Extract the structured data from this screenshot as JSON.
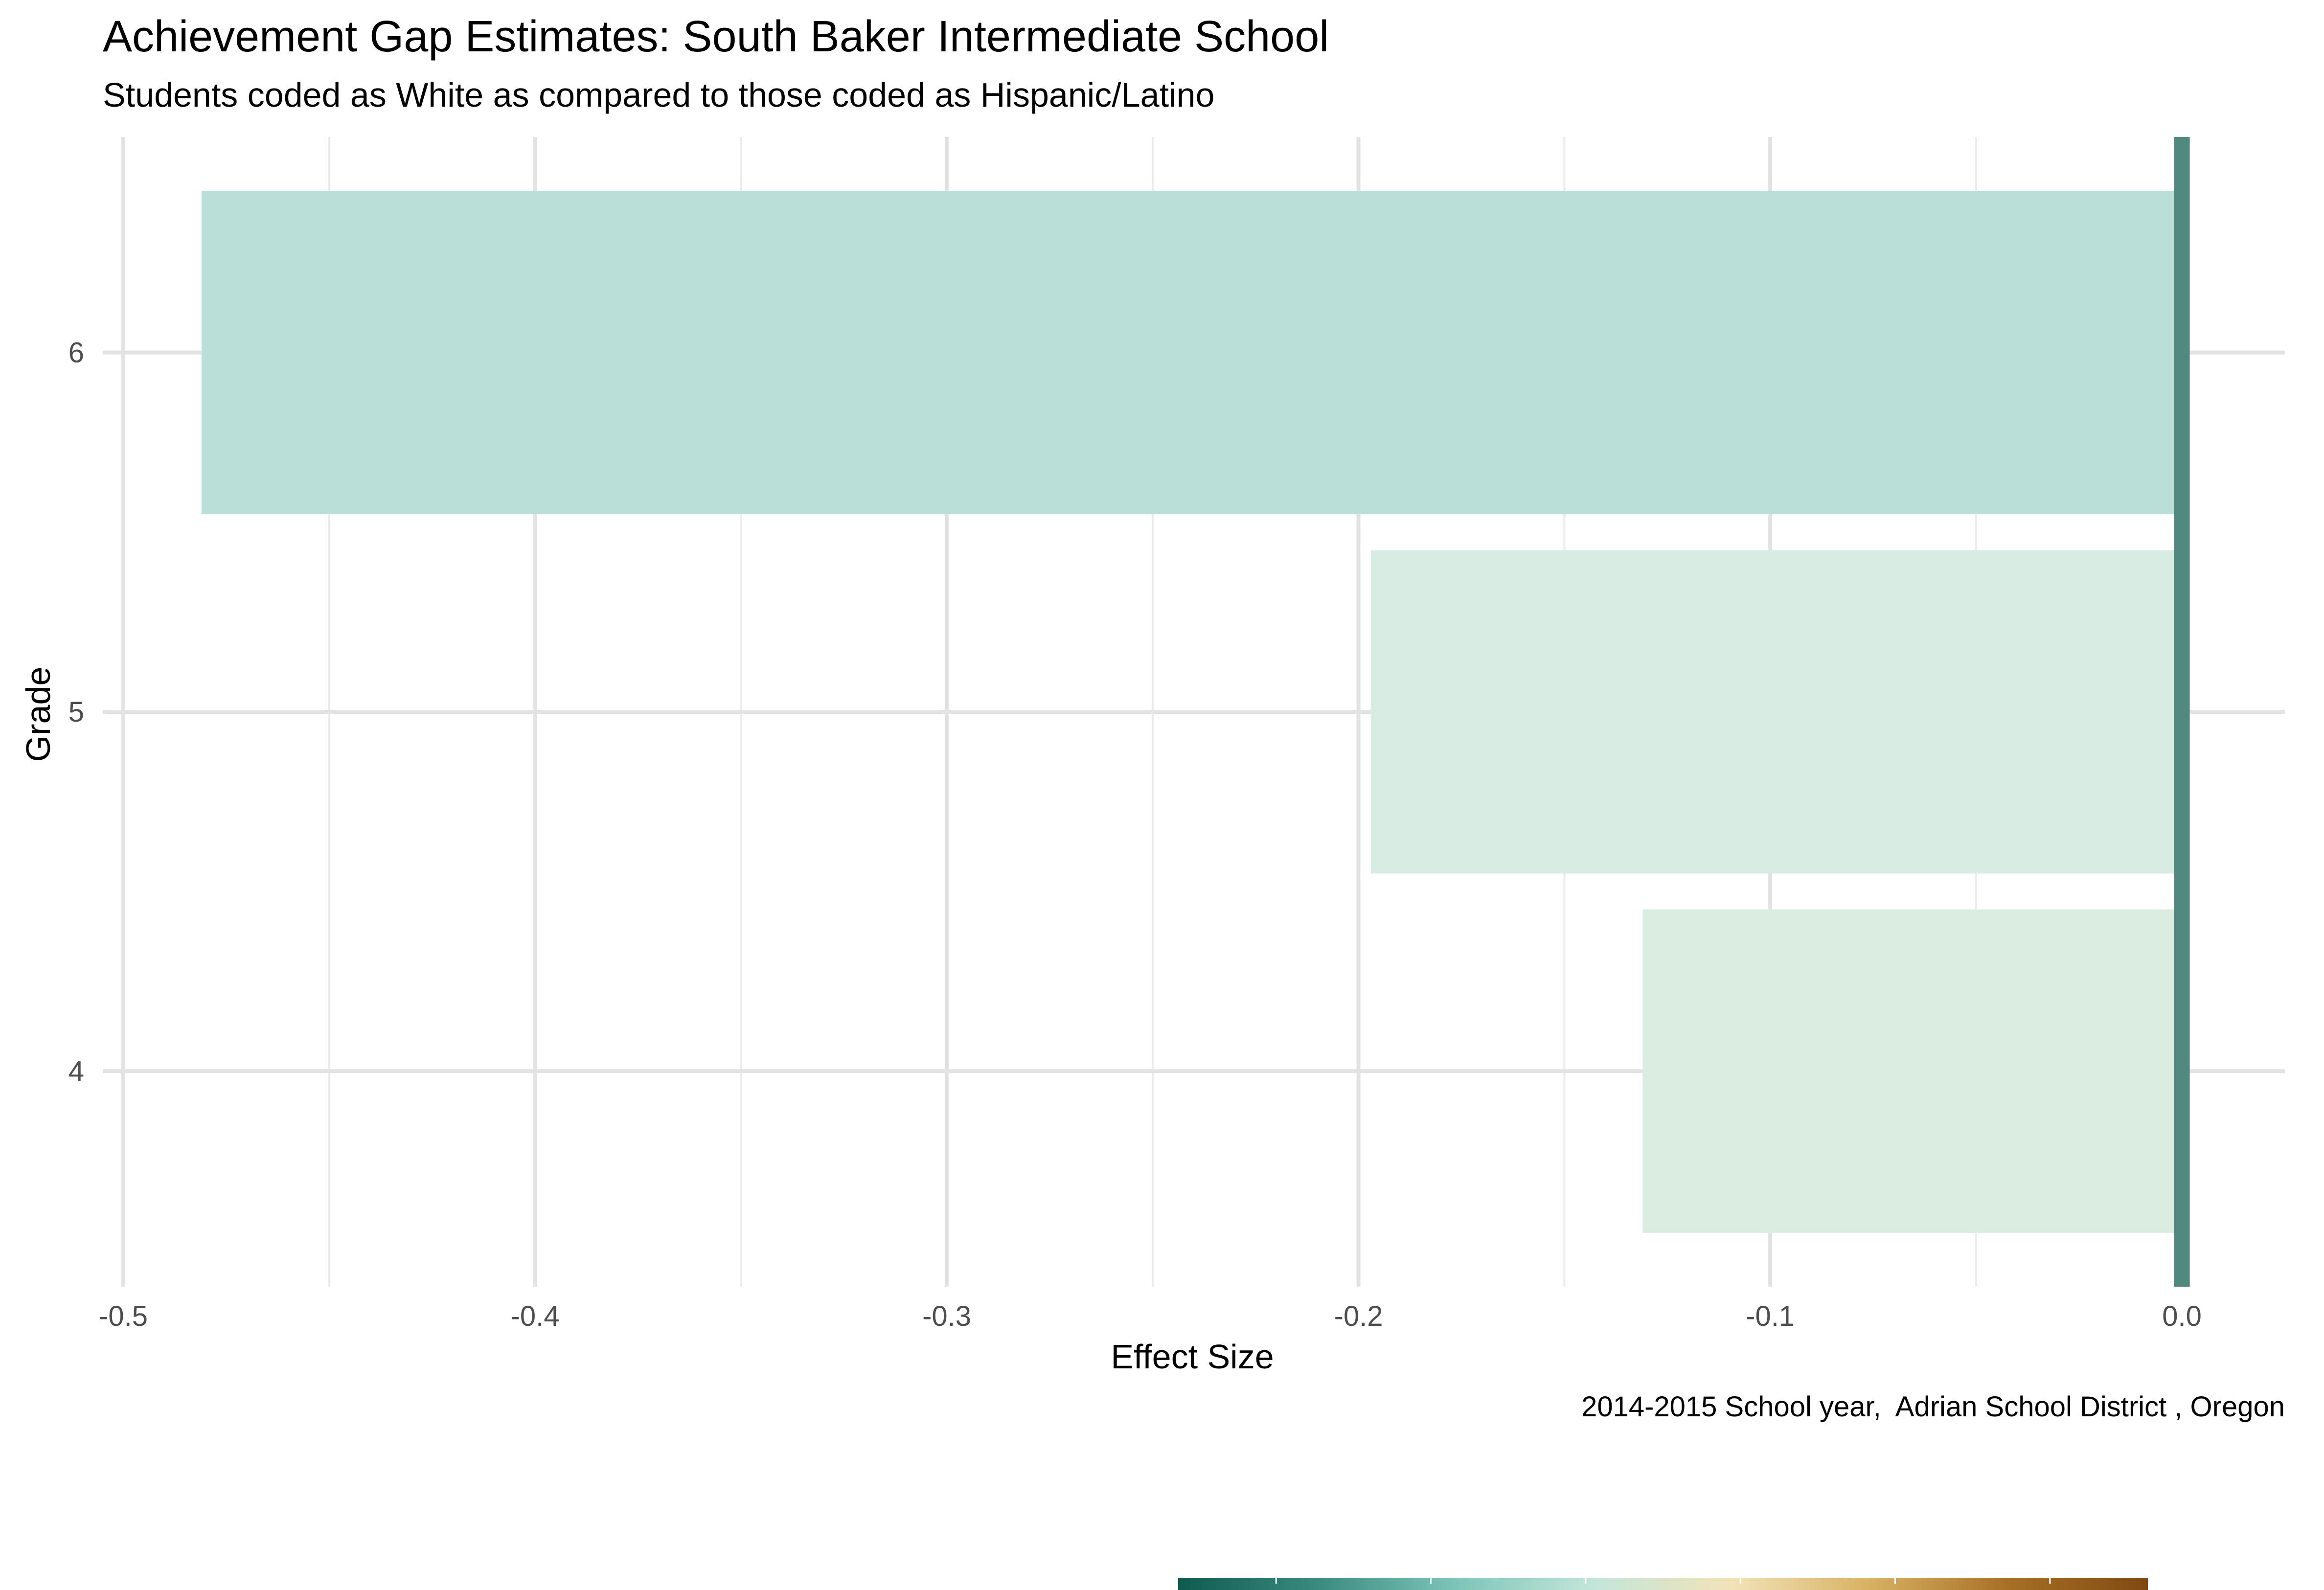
{
  "chart_data": {
    "type": "bar",
    "orientation": "horizontal",
    "title": "Achievement Gap Estimates: South Baker Intermediate School",
    "subtitle": "Students coded as White as compared to those coded as Hispanic/Latino",
    "xlabel": "Effect Size",
    "ylabel": "Grade",
    "caption": "2014-2015 School year,  Adrian School District , Oregon",
    "categories": [
      "4",
      "5",
      "6"
    ],
    "values": [
      -0.131,
      -0.197,
      -0.481
    ],
    "bar_colors": [
      "#dbece0",
      "#d8ece3",
      "#badfd8"
    ],
    "xlim": [
      -0.505,
      0.025
    ],
    "x_ticks": [
      -0.5,
      -0.4,
      -0.3,
      -0.2,
      -0.1,
      0.0
    ],
    "x_tick_labels": [
      "-0.5",
      "-0.4",
      "-0.3",
      "-0.2",
      "-0.1",
      "0.0"
    ],
    "reference_line": {
      "x": 0.0,
      "color": "#52897f"
    },
    "grid": true,
    "legend": {
      "type": "colorbar",
      "position": "bottom",
      "colors": [
        "#0f5b50",
        "#3a8a80",
        "#7dc4b8",
        "#c4e6da",
        "#f2e3b8",
        "#d7b163",
        "#a66f25",
        "#7f4a12"
      ]
    }
  }
}
